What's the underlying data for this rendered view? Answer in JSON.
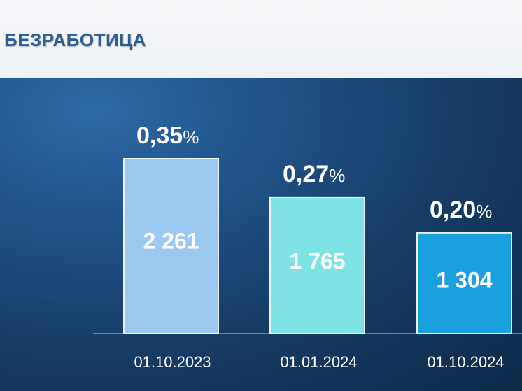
{
  "title": "БЕЗРАБОТИЦА",
  "colors": {
    "title": "#2b5f93",
    "panel_bg": "#1a4475",
    "bar_1": "#9cc9f2",
    "bar_2": "#7fe3e6",
    "bar_3": "#1b9fdf"
  },
  "chart_data": {
    "type": "bar",
    "categories": [
      "01.10.2023",
      "01.01.2024",
      "01.10.2024"
    ],
    "values": [
      2261,
      1765,
      1304
    ],
    "value_labels": [
      "2 261",
      "1 765",
      "1 304"
    ],
    "rate_labels": [
      "0,35",
      "0,27",
      "0,20"
    ],
    "rate_unit": "%",
    "grid": false,
    "legend": "none"
  }
}
